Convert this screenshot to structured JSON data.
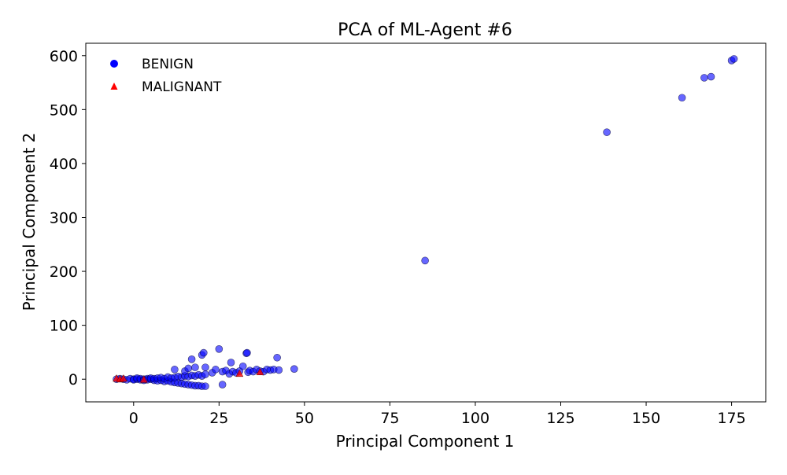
{
  "chart_data": {
    "type": "scatter",
    "title": "PCA of ML-Agent #6",
    "xlabel": "Principal Component 1",
    "ylabel": "Principal Component 2",
    "xlim": [
      -14,
      185
    ],
    "ylim": [
      -42,
      623
    ],
    "xticks": [
      0,
      25,
      50,
      75,
      100,
      125,
      150,
      175
    ],
    "yticks": [
      0,
      100,
      200,
      300,
      400,
      500,
      600
    ],
    "grid": false,
    "legend_position": "top-left",
    "series": [
      {
        "name": "BENIGN",
        "marker": "circle",
        "color": "#0000ff",
        "alpha": 0.6,
        "points": [
          [
            -5,
            0
          ],
          [
            -4,
            1
          ],
          [
            -3,
            0
          ],
          [
            -2,
            -1
          ],
          [
            -1,
            1
          ],
          [
            0,
            0
          ],
          [
            0,
            -1
          ],
          [
            1,
            0
          ],
          [
            1,
            2
          ],
          [
            2,
            -1
          ],
          [
            2,
            1
          ],
          [
            3,
            0
          ],
          [
            3,
            -2
          ],
          [
            4,
            1
          ],
          [
            4,
            -1
          ],
          [
            5,
            0
          ],
          [
            5,
            2
          ],
          [
            6,
            -2
          ],
          [
            6,
            1
          ],
          [
            7,
            -3
          ],
          [
            7,
            2
          ],
          [
            8,
            -2
          ],
          [
            8,
            3
          ],
          [
            9,
            -4
          ],
          [
            9,
            1
          ],
          [
            10,
            -3
          ],
          [
            10,
            4
          ],
          [
            11,
            -5
          ],
          [
            11,
            2
          ],
          [
            12,
            -6
          ],
          [
            12,
            3
          ],
          [
            13,
            -7
          ],
          [
            13,
            5
          ],
          [
            14,
            -8
          ],
          [
            14,
            4
          ],
          [
            15,
            -9
          ],
          [
            15,
            6
          ],
          [
            16,
            -10
          ],
          [
            16,
            5
          ],
          [
            17,
            -11
          ],
          [
            17,
            7
          ],
          [
            18,
            -12
          ],
          [
            18,
            6
          ],
          [
            19,
            -12
          ],
          [
            19,
            8
          ],
          [
            20,
            -13
          ],
          [
            20,
            6
          ],
          [
            21,
            -13
          ],
          [
            21,
            9
          ],
          [
            12,
            18
          ],
          [
            15,
            15
          ],
          [
            16,
            20
          ],
          [
            17,
            37
          ],
          [
            18,
            22
          ],
          [
            20,
            45
          ],
          [
            20.5,
            49
          ],
          [
            21,
            22
          ],
          [
            23,
            12
          ],
          [
            24,
            18
          ],
          [
            25,
            56
          ],
          [
            26,
            14
          ],
          [
            26,
            -10
          ],
          [
            27,
            16
          ],
          [
            28,
            10
          ],
          [
            28.5,
            31
          ],
          [
            29,
            14
          ],
          [
            30,
            12
          ],
          [
            31,
            15
          ],
          [
            32,
            24
          ],
          [
            33,
            48
          ],
          [
            33.2,
            49
          ],
          [
            33.5,
            13
          ],
          [
            34,
            16
          ],
          [
            35,
            14
          ],
          [
            36,
            18
          ],
          [
            37,
            15
          ],
          [
            38,
            14
          ],
          [
            39,
            18
          ],
          [
            40,
            17
          ],
          [
            41,
            18
          ],
          [
            42,
            40
          ],
          [
            42.5,
            17
          ],
          [
            47,
            19
          ],
          [
            85.3,
            220
          ],
          [
            138.5,
            458
          ],
          [
            160.5,
            522
          ],
          [
            167,
            559
          ],
          [
            169,
            561
          ],
          [
            175,
            591
          ],
          [
            175.7,
            594
          ]
        ]
      },
      {
        "name": "MALIGNANT",
        "marker": "triangle",
        "color": "#ff0000",
        "alpha": 0.8,
        "points": [
          [
            -5,
            1
          ],
          [
            -4,
            0
          ],
          [
            -3,
            1
          ],
          [
            3,
            -1
          ],
          [
            31,
            10
          ],
          [
            37,
            13
          ]
        ]
      }
    ]
  }
}
